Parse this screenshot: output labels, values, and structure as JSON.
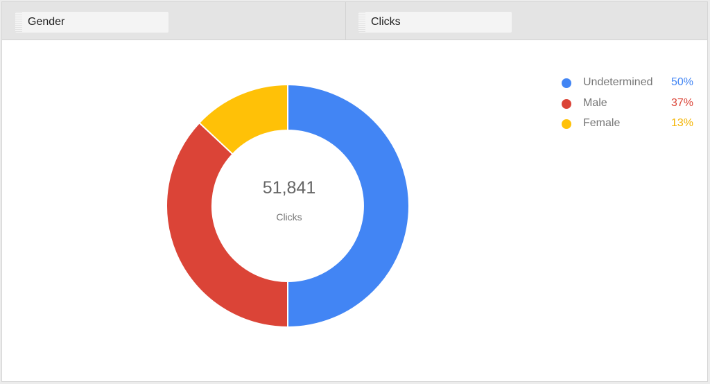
{
  "header": {
    "dimension_chip": {
      "label": "Gender"
    },
    "metric_chip": {
      "label": "Clicks"
    }
  },
  "center": {
    "value": "51,841",
    "label": "Clicks"
  },
  "legend": [
    {
      "name": "Undetermined",
      "percent": "50%",
      "color": "#4285F4"
    },
    {
      "name": "Male",
      "percent": "37%",
      "color": "#DB4437"
    },
    {
      "name": "Female",
      "percent": "13%",
      "color": "#F4B400"
    }
  ],
  "chart_data": {
    "type": "pie",
    "variant": "donut",
    "title": "Gender",
    "metric": "Clicks",
    "total": 51841,
    "categories": [
      "Undetermined",
      "Male",
      "Female"
    ],
    "values": [
      50,
      37,
      13
    ],
    "unit": "%",
    "colors": [
      "#4285F4",
      "#DB4437",
      "#FFC107"
    ],
    "legend_position": "right",
    "center_text": {
      "value": "51,841",
      "label": "Clicks"
    }
  }
}
